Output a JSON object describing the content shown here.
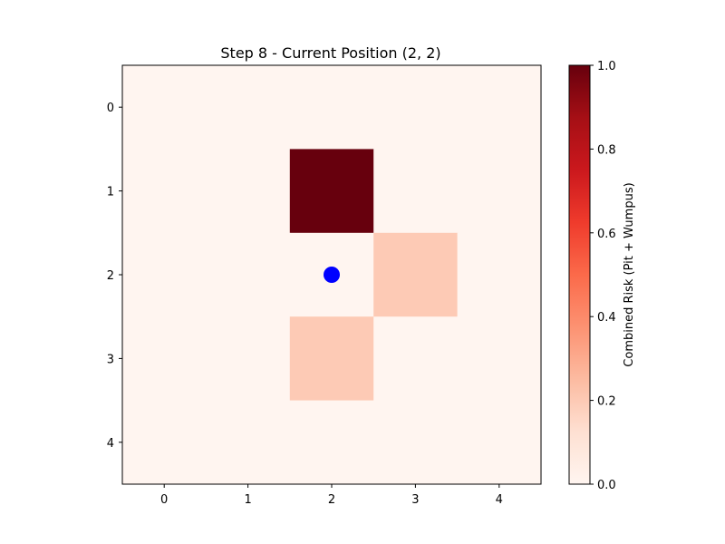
{
  "chart_data": {
    "type": "heatmap",
    "title": "Step 8 - Current Position (2, 2)",
    "xlabel": "",
    "ylabel": "",
    "x_ticks": [
      "0",
      "1",
      "2",
      "3",
      "4"
    ],
    "y_ticks": [
      "0",
      "1",
      "2",
      "3",
      "4"
    ],
    "grid": false,
    "rows": 5,
    "cols": 5,
    "values": [
      [
        0.0,
        0.0,
        0.0,
        0.0,
        0.0
      ],
      [
        0.0,
        0.0,
        1.0,
        0.0,
        0.0
      ],
      [
        0.0,
        0.0,
        0.0,
        0.2,
        0.0
      ],
      [
        0.0,
        0.0,
        0.2,
        0.0,
        0.0
      ],
      [
        0.0,
        0.0,
        0.0,
        0.0,
        0.0
      ]
    ],
    "marker": {
      "x": 2,
      "y": 2,
      "color": "#0000ff"
    },
    "colorbar": {
      "label": "Combined Risk (Pit + Wumpus)",
      "range": [
        0.0,
        1.0
      ],
      "ticks": [
        "0.0",
        "0.2",
        "0.4",
        "0.6",
        "0.8",
        "1.0"
      ],
      "colormap": "Reds",
      "colors": [
        "#fff5f0",
        "#fee0d2",
        "#fcbba1",
        "#fc9272",
        "#fb6a4a",
        "#ef3b2c",
        "#cb181d",
        "#a50f15",
        "#67000d"
      ]
    }
  }
}
